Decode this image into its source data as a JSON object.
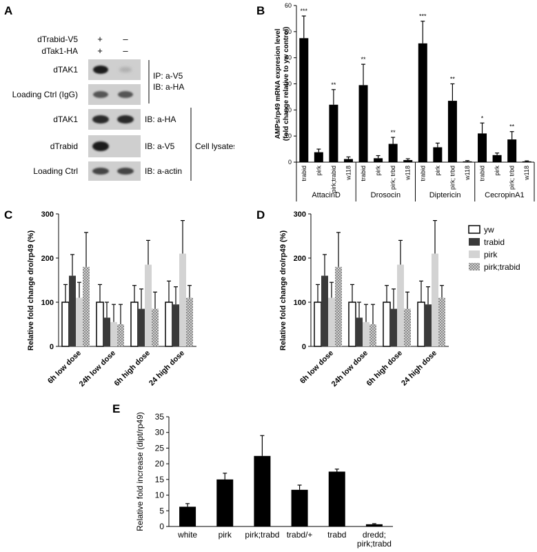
{
  "panels": {
    "A": "A",
    "B": "B",
    "C": "C",
    "D": "D",
    "E": "E"
  },
  "panel_a": {
    "conditions": [
      {
        "label": "dTrabid-V5",
        "lane1": "+",
        "lane2": "–"
      },
      {
        "label": "dTak1-HA",
        "lane1": "+",
        "lane2": "–"
      }
    ],
    "blots": [
      {
        "label": "dTAK1",
        "lane1_band": "strong",
        "lane2_band": "faint"
      },
      {
        "label": "Loading Ctrl (IgG)",
        "lane1_band": "medium",
        "lane2_band": "medium"
      },
      {
        "label": "dTAK1",
        "lane1_band": "strong",
        "lane2_band": "strong"
      },
      {
        "label": "dTrabid",
        "lane1_band": "strong",
        "lane2_band": "none"
      },
      {
        "label": "Loading Ctrl",
        "lane1_band": "medium",
        "lane2_band": "medium"
      }
    ],
    "ip_line1": "IP: a-V5",
    "ip_line2": "IB: a-HA",
    "ib_labels": [
      "IB: a-HA",
      "IB: a-V5",
      "IB: a-actin"
    ],
    "cell_lysates": "Cell lysates"
  },
  "chart_data": [
    {
      "id": "B",
      "type": "bar",
      "ylabel_line1": "AMPs/rp49 mRNA expresion level",
      "ylabel_line2": "(fold change relative to yw control)",
      "ylim": [
        0,
        60
      ],
      "yticks": [
        0,
        10,
        20,
        30,
        40,
        50,
        60
      ],
      "color": "#000000",
      "groups": [
        {
          "name": "AttacinD",
          "categories": [
            "trabid",
            "pirk",
            "pirk;trabid",
            "w118"
          ],
          "values": [
            47.5,
            3.8,
            22,
            1.2
          ],
          "errors": [
            8.5,
            1.2,
            5.8,
            0.8
          ],
          "stars": [
            "***",
            "",
            "**",
            ""
          ]
        },
        {
          "name": "Drosocin",
          "categories": [
            "trabid",
            "pirk",
            "pirk; trbd",
            "w118"
          ],
          "values": [
            29.5,
            1.5,
            7,
            0.8
          ],
          "errors": [
            8,
            1,
            2.5,
            0.5
          ],
          "stars": [
            "**",
            "",
            "**",
            ""
          ]
        },
        {
          "name": "Diptericin",
          "categories": [
            "trabid",
            "pirk",
            "pirk; trbd",
            "w118"
          ],
          "values": [
            45.5,
            5.7,
            23.5,
            0.3
          ],
          "errors": [
            8.5,
            1.6,
            6.5,
            0.3
          ],
          "stars": [
            "***",
            "",
            "**",
            ""
          ]
        },
        {
          "name": "CecropinA1",
          "categories": [
            "trabid",
            "pirk",
            "pirk; trbd",
            "w118"
          ],
          "values": [
            11,
            2.7,
            8.7,
            0.3
          ],
          "errors": [
            4,
            0.8,
            3,
            0.2
          ],
          "stars": [
            "*",
            "",
            "**",
            ""
          ]
        }
      ]
    },
    {
      "id": "C",
      "type": "bar",
      "ylabel": "Relative fold change dro/rp49 (%)",
      "ylim": [
        0,
        300
      ],
      "yticks": [
        0,
        100,
        200,
        300
      ],
      "categories": [
        "6h low dose",
        "24h low dose",
        "6h high dose",
        "24 high dose"
      ],
      "series": [
        {
          "name": "yw",
          "values": [
            100,
            100,
            100,
            100
          ],
          "errors": [
            40,
            40,
            38,
            48
          ]
        },
        {
          "name": "trabid",
          "values": [
            160,
            65,
            85,
            95
          ],
          "errors": [
            48,
            35,
            45,
            40
          ]
        },
        {
          "name": "pirk",
          "values": [
            110,
            55,
            185,
            210
          ],
          "errors": [
            35,
            40,
            55,
            75
          ]
        },
        {
          "name": "pirk;trabid",
          "values": [
            180,
            50,
            85,
            110
          ],
          "errors": [
            78,
            45,
            38,
            28
          ]
        }
      ]
    },
    {
      "id": "D",
      "type": "bar",
      "ylabel": "Relative fold change dro/rp49 (%)",
      "ylim": [
        0,
        300
      ],
      "yticks": [
        0,
        100,
        200,
        300
      ],
      "legend_position": "right",
      "categories": [
        "6h low dose",
        "24h low dose",
        "6h high dose",
        "24 high dose"
      ],
      "series": [
        {
          "name": "yw",
          "values": [
            100,
            100,
            100,
            100
          ],
          "errors": [
            40,
            40,
            38,
            48
          ]
        },
        {
          "name": "trabid",
          "values": [
            160,
            65,
            85,
            95
          ],
          "errors": [
            48,
            35,
            45,
            40
          ]
        },
        {
          "name": "pirk",
          "values": [
            110,
            55,
            185,
            210
          ],
          "errors": [
            35,
            40,
            55,
            75
          ]
        },
        {
          "name": "pirk;trabid",
          "values": [
            180,
            50,
            85,
            110
          ],
          "errors": [
            78,
            45,
            38,
            28
          ]
        }
      ]
    },
    {
      "id": "E",
      "type": "bar",
      "ylabel": "Relative fold increase (dipt/rp49)",
      "ylim": [
        0,
        35
      ],
      "yticks": [
        0,
        5,
        10,
        15,
        20,
        25,
        30,
        35
      ],
      "categories": [
        "white",
        "pirk",
        "pirk;trabd",
        "trabd/+",
        "trabd",
        "dredd;\npirk;trabd"
      ],
      "values": [
        6.3,
        15,
        22.5,
        11.7,
        17.5,
        0.7
      ],
      "errors": [
        1,
        2,
        6.5,
        1.5,
        0.8,
        0.2
      ]
    }
  ]
}
